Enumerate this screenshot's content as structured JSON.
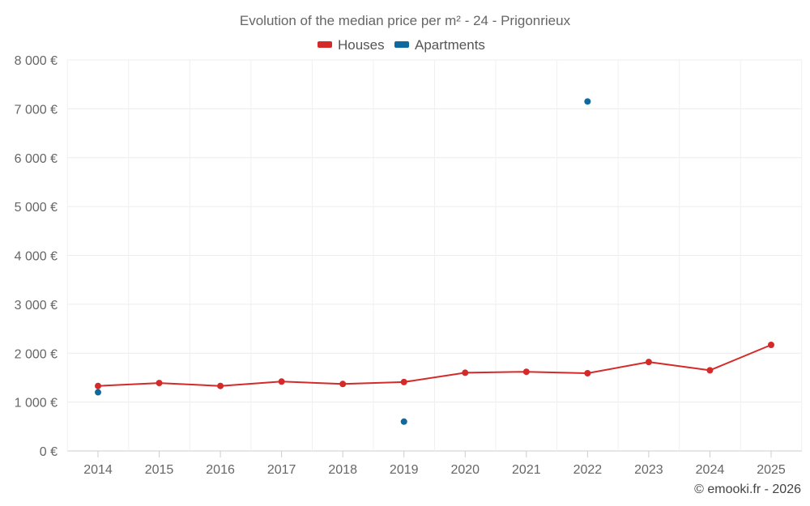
{
  "chart_data": {
    "type": "line",
    "title": "Evolution of the median price per m² - 24 - Prigonrieux",
    "categories": [
      "2014",
      "2015",
      "2016",
      "2017",
      "2018",
      "2019",
      "2020",
      "2021",
      "2022",
      "2023",
      "2024",
      "2025"
    ],
    "ylim": [
      0,
      8000
    ],
    "yticks": [
      0,
      1000,
      2000,
      3000,
      4000,
      5000,
      6000,
      7000,
      8000
    ],
    "ytick_labels": [
      "0 €",
      "1 000 €",
      "2 000 €",
      "3 000 €",
      "4 000 €",
      "5 000 €",
      "6 000 €",
      "7 000 €",
      "8 000 €"
    ],
    "grid": true,
    "legend_position": "top-center",
    "series": [
      {
        "name": "Houses",
        "color": "#d42a2a",
        "connected": true,
        "values": [
          1330,
          1390,
          1330,
          1420,
          1370,
          1410,
          1600,
          1620,
          1590,
          1820,
          1650,
          2170
        ]
      },
      {
        "name": "Apartments",
        "color": "#0e6a9e",
        "connected": false,
        "values": [
          1200,
          null,
          null,
          null,
          null,
          600,
          null,
          null,
          7150,
          null,
          null,
          null
        ]
      }
    ],
    "credit": "© emooki.fr - 2026"
  }
}
